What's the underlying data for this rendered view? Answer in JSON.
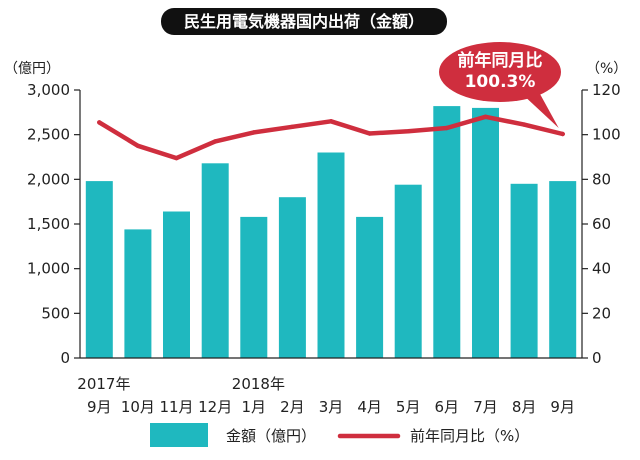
{
  "chart_data": {
    "type": "bar",
    "title": "民生用電気機器国内出荷（金額）",
    "left_unit": "（億円）",
    "right_unit": "（%）",
    "categories": [
      "9月",
      "10月",
      "11月",
      "12月",
      "1月",
      "2月",
      "3月",
      "4月",
      "5月",
      "6月",
      "7月",
      "8月",
      "9月"
    ],
    "year_labels": [
      {
        "index": 0,
        "label": "2017年"
      },
      {
        "index": 4,
        "label": "2018年"
      }
    ],
    "y_left": {
      "min": 0,
      "max": 3000,
      "ticks": [
        "0",
        "500",
        "1,000",
        "1,500",
        "2,000",
        "2,500",
        "3,000"
      ]
    },
    "y_right": {
      "min": 0,
      "max": 120,
      "ticks": [
        "0",
        "20",
        "40",
        "60",
        "80",
        "100",
        "120"
      ]
    },
    "grid": false,
    "legend_position": "bottom",
    "series": [
      {
        "name": "金額（億円）",
        "type": "bar",
        "axis": "left",
        "color": "#1fb8bf",
        "values": [
          1980,
          1440,
          1640,
          2180,
          1580,
          1800,
          2300,
          1580,
          1940,
          2820,
          2800,
          1950,
          1980
        ]
      },
      {
        "name": "前年同月比（%）",
        "type": "line",
        "axis": "right",
        "color": "#cf2e3e",
        "values": [
          105.5,
          95,
          89.5,
          97,
          101,
          103.5,
          106,
          100.5,
          101.5,
          103,
          108,
          104.5,
          100.3
        ]
      }
    ],
    "annotation": {
      "label": "前年同月比",
      "value": "100.3%",
      "point_index": 12,
      "series": "前年同月比（%）"
    }
  }
}
